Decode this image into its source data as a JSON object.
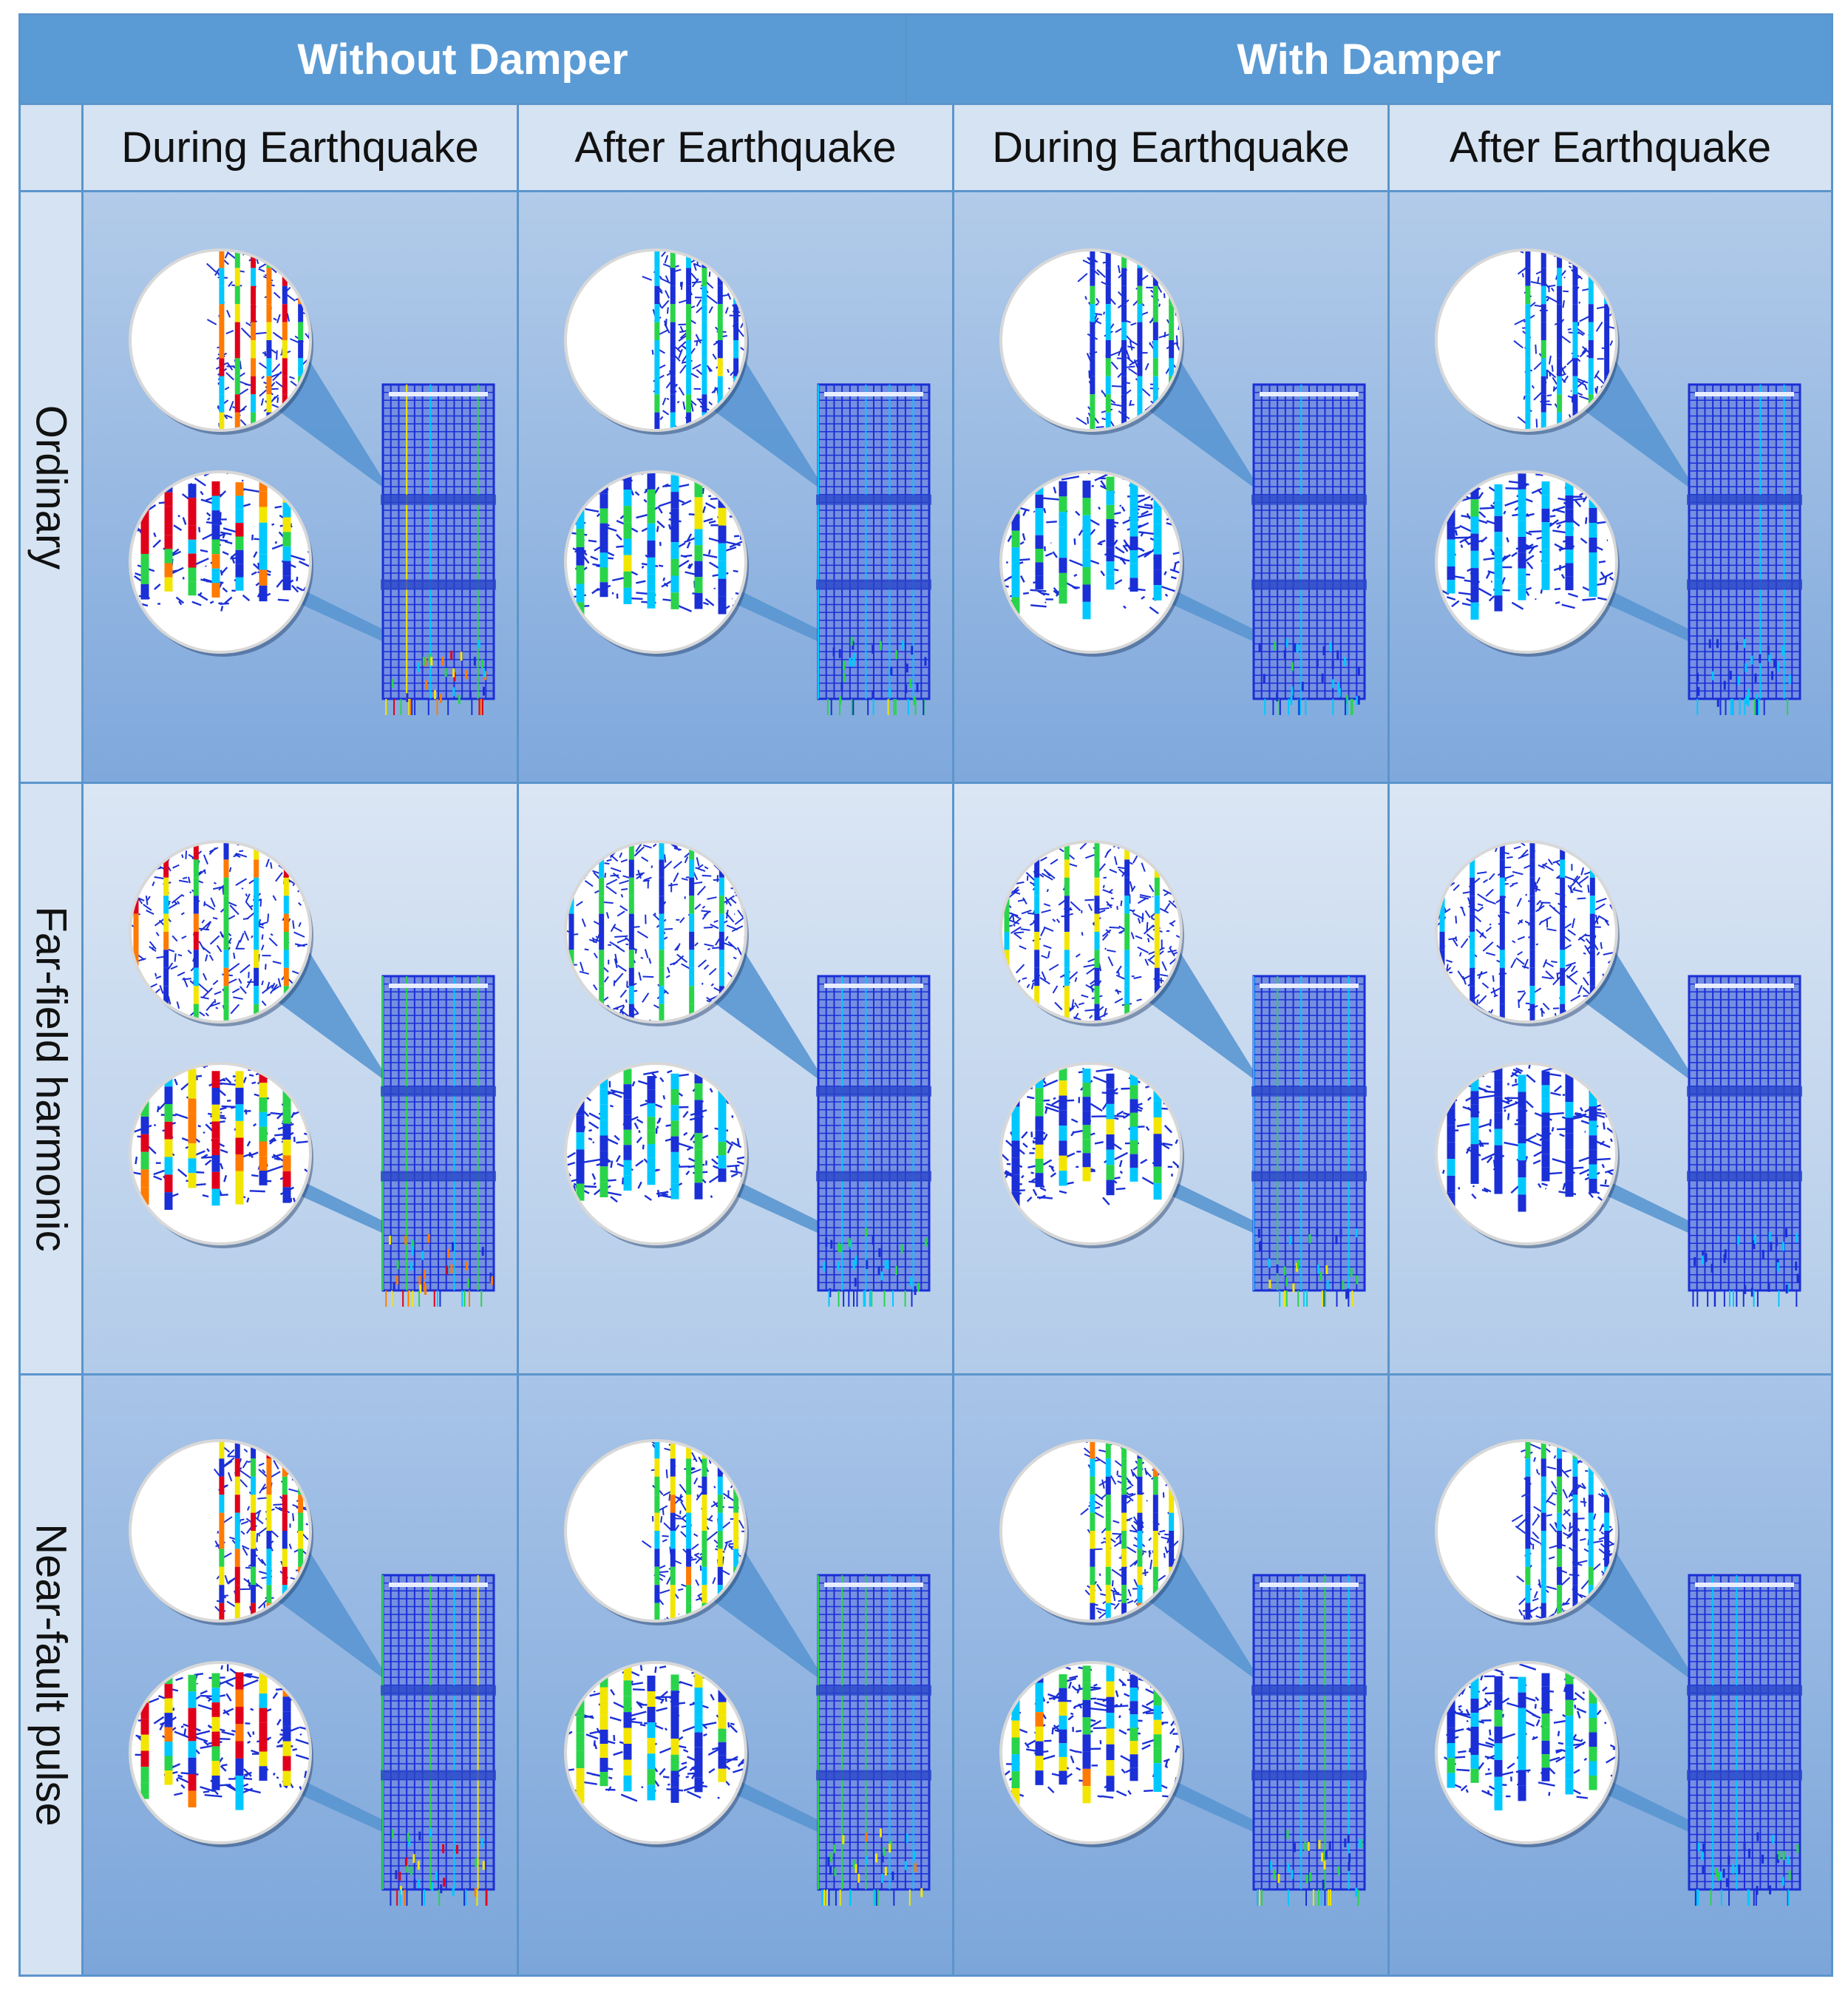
{
  "header": {
    "groups": [
      "Without Damper",
      "With Damper"
    ],
    "columns": [
      "During Earthquake",
      "After Earthquake",
      "During Earthquake",
      "After Earthquake"
    ]
  },
  "rows": [
    {
      "label": "Ordinary",
      "cells": [
        {
          "damper": false,
          "stage": "during",
          "severity": 0.9
        },
        {
          "damper": false,
          "stage": "after",
          "severity": 0.45
        },
        {
          "damper": true,
          "stage": "during",
          "severity": 0.35
        },
        {
          "damper": true,
          "stage": "after",
          "severity": 0.3
        }
      ]
    },
    {
      "label": "Far-field harmonic",
      "cells": [
        {
          "damper": false,
          "stage": "during",
          "severity": 0.85
        },
        {
          "damper": false,
          "stage": "after",
          "severity": 0.4
        },
        {
          "damper": true,
          "stage": "during",
          "severity": 0.55
        },
        {
          "damper": true,
          "stage": "after",
          "severity": 0.2
        }
      ]
    },
    {
      "label": "Near-fault pulse",
      "cells": [
        {
          "damper": false,
          "stage": "during",
          "severity": 0.95
        },
        {
          "damper": false,
          "stage": "after",
          "severity": 0.6
        },
        {
          "damper": true,
          "stage": "during",
          "severity": 0.6
        },
        {
          "damper": true,
          "stage": "after",
          "severity": 0.35
        }
      ]
    }
  ],
  "colors": {
    "header_bg": "#5b9bd5",
    "subheader_bg": "#d6e3f2",
    "grid_line": "#5b95cc",
    "mesh_blue": "#1a2fd6",
    "stress_scale": [
      "#1a2fd6",
      "#00c8ff",
      "#29d44a",
      "#f2e600",
      "#ff7a00",
      "#e0001a"
    ]
  },
  "icons": [
    "structure-model-icon",
    "zoom-circle-upper-icon",
    "zoom-circle-lower-icon"
  ]
}
